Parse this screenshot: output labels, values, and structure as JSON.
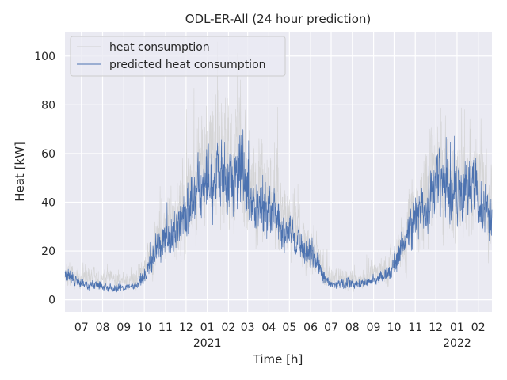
{
  "chart_data": {
    "type": "line",
    "title": "ODL-ER-All (24 hour prediction)",
    "xlabel": "Time [h]",
    "ylabel": "Heat [kW]",
    "ylim": [
      -5,
      110
    ],
    "xlim": [
      "2020-06-07",
      "2022-02-21"
    ],
    "yticks": [
      0,
      20,
      40,
      60,
      80,
      100
    ],
    "xticks": [
      {
        "date": "2020-07-01",
        "label": "07",
        "year": ""
      },
      {
        "date": "2020-08-01",
        "label": "08",
        "year": ""
      },
      {
        "date": "2020-09-01",
        "label": "09",
        "year": ""
      },
      {
        "date": "2020-10-01",
        "label": "10",
        "year": ""
      },
      {
        "date": "2020-11-01",
        "label": "11",
        "year": ""
      },
      {
        "date": "2020-12-01",
        "label": "12",
        "year": ""
      },
      {
        "date": "2021-01-01",
        "label": "01",
        "year": "2021"
      },
      {
        "date": "2021-02-01",
        "label": "02",
        "year": ""
      },
      {
        "date": "2021-03-01",
        "label": "03",
        "year": ""
      },
      {
        "date": "2021-04-01",
        "label": "04",
        "year": ""
      },
      {
        "date": "2021-05-01",
        "label": "05",
        "year": ""
      },
      {
        "date": "2021-06-01",
        "label": "06",
        "year": ""
      },
      {
        "date": "2021-07-01",
        "label": "07",
        "year": ""
      },
      {
        "date": "2021-08-01",
        "label": "08",
        "year": ""
      },
      {
        "date": "2021-09-01",
        "label": "09",
        "year": ""
      },
      {
        "date": "2021-10-01",
        "label": "10",
        "year": ""
      },
      {
        "date": "2021-11-01",
        "label": "11",
        "year": ""
      },
      {
        "date": "2021-12-01",
        "label": "12",
        "year": ""
      },
      {
        "date": "2022-01-01",
        "label": "01",
        "year": "2022"
      },
      {
        "date": "2022-02-01",
        "label": "02",
        "year": ""
      }
    ],
    "grid": true,
    "legend_position": "top-left",
    "series": [
      {
        "name": "heat consumption",
        "color": "#d3d3d3",
        "style": "thin-noisy",
        "x": [
          "2020-06-07",
          "2020-06-22",
          "2020-07-07",
          "2020-07-22",
          "2020-08-07",
          "2020-08-22",
          "2020-09-07",
          "2020-09-22",
          "2020-10-07",
          "2020-10-22",
          "2020-11-07",
          "2020-11-22",
          "2020-12-07",
          "2020-12-22",
          "2021-01-07",
          "2021-01-22",
          "2021-02-07",
          "2021-02-22",
          "2021-03-07",
          "2021-03-22",
          "2021-04-07",
          "2021-04-22",
          "2021-05-07",
          "2021-05-22",
          "2021-06-07",
          "2021-06-22",
          "2021-07-07",
          "2021-07-22",
          "2021-08-07",
          "2021-08-22",
          "2021-09-07",
          "2021-09-22",
          "2021-10-07",
          "2021-10-22",
          "2021-11-07",
          "2021-11-22",
          "2021-12-07",
          "2021-12-22",
          "2022-01-07",
          "2022-01-22",
          "2022-02-07",
          "2022-02-21"
        ],
        "values": [
          12,
          10,
          9,
          9,
          8,
          8,
          8,
          9,
          16,
          25,
          30,
          35,
          42,
          52,
          57,
          55,
          53,
          58,
          40,
          43,
          38,
          33,
          30,
          24,
          20,
          11,
          9,
          9,
          8,
          9,
          10,
          13,
          20,
          30,
          38,
          48,
          55,
          50,
          49,
          50,
          45,
          38
        ]
      },
      {
        "name": "predicted heat consumption",
        "color": "#4c72b0",
        "style": "thin-noisy",
        "x": [
          "2020-06-07",
          "2020-06-22",
          "2020-07-07",
          "2020-07-22",
          "2020-08-07",
          "2020-08-22",
          "2020-09-07",
          "2020-09-22",
          "2020-10-07",
          "2020-10-22",
          "2020-11-07",
          "2020-11-22",
          "2020-12-07",
          "2020-12-22",
          "2021-01-07",
          "2021-01-22",
          "2021-02-07",
          "2021-02-22",
          "2021-03-07",
          "2021-03-22",
          "2021-04-07",
          "2021-04-22",
          "2021-05-07",
          "2021-05-22",
          "2021-06-07",
          "2021-06-22",
          "2021-07-07",
          "2021-07-22",
          "2021-08-07",
          "2021-08-22",
          "2021-09-07",
          "2021-09-22",
          "2021-10-07",
          "2021-10-22",
          "2021-11-07",
          "2021-11-22",
          "2021-12-07",
          "2021-12-22",
          "2022-01-07",
          "2022-01-22",
          "2022-02-07",
          "2022-02-21"
        ],
        "values": [
          10,
          8,
          6,
          6,
          5,
          5,
          5,
          6,
          14,
          22,
          26,
          30,
          38,
          45,
          52,
          50,
          48,
          52,
          36,
          38,
          35,
          30,
          26,
          22,
          18,
          8,
          6,
          7,
          6,
          7,
          8,
          11,
          18,
          28,
          34,
          42,
          48,
          44,
          44,
          45,
          40,
          33
        ]
      }
    ]
  }
}
